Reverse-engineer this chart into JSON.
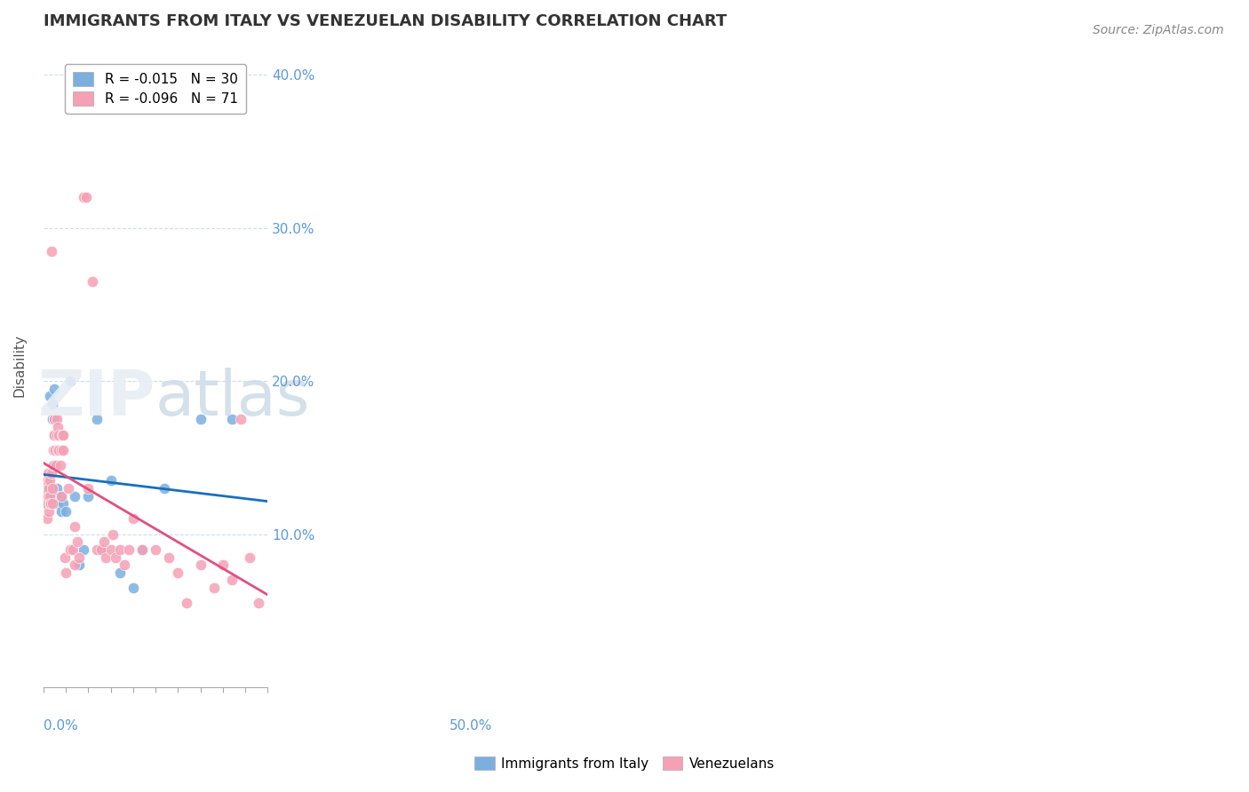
{
  "title": "IMMIGRANTS FROM ITALY VS VENEZUELAN DISABILITY CORRELATION CHART",
  "source": "Source: ZipAtlas.com",
  "ylabel": "Disability",
  "right_yticks": [
    0.1,
    0.2,
    0.3,
    0.4
  ],
  "right_yticklabels": [
    "10.0%",
    "20.0%",
    "30.0%",
    "40.0%"
  ],
  "xlim": [
    0.0,
    0.5
  ],
  "ylim": [
    0.0,
    0.42
  ],
  "legend_entries": [
    {
      "label": "R = -0.015   N = 30",
      "color": "#a8c4e0"
    },
    {
      "label": "R = -0.096   N = 71",
      "color": "#f4a0b0"
    }
  ],
  "legend_label1": "Immigrants from Italy",
  "legend_label2": "Venezuelans",
  "blue_color": "#7aafde",
  "pink_color": "#f5a0b5",
  "trendline_blue_color": "#1a6fbd",
  "trendline_pink_color": "#e05080",
  "italy_x": [
    0.01,
    0.01,
    0.015,
    0.02,
    0.02,
    0.025,
    0.025,
    0.03,
    0.03,
    0.03,
    0.035,
    0.035,
    0.04,
    0.04,
    0.045,
    0.05,
    0.06,
    0.07,
    0.08,
    0.09,
    0.1,
    0.12,
    0.13,
    0.15,
    0.17,
    0.2,
    0.22,
    0.27,
    0.35,
    0.42
  ],
  "italy_y": [
    0.13,
    0.12,
    0.19,
    0.185,
    0.175,
    0.195,
    0.175,
    0.13,
    0.125,
    0.12,
    0.165,
    0.155,
    0.125,
    0.115,
    0.12,
    0.115,
    0.2,
    0.125,
    0.08,
    0.09,
    0.125,
    0.175,
    0.09,
    0.135,
    0.075,
    0.065,
    0.09,
    0.13,
    0.175,
    0.175
  ],
  "venezuela_x": [
    0.005,
    0.007,
    0.008,
    0.009,
    0.01,
    0.01,
    0.012,
    0.013,
    0.014,
    0.015,
    0.015,
    0.016,
    0.018,
    0.019,
    0.02,
    0.02,
    0.022,
    0.023,
    0.024,
    0.025,
    0.025,
    0.026,
    0.028,
    0.03,
    0.03,
    0.032,
    0.033,
    0.035,
    0.035,
    0.038,
    0.04,
    0.04,
    0.042,
    0.045,
    0.045,
    0.048,
    0.05,
    0.055,
    0.06,
    0.065,
    0.07,
    0.07,
    0.075,
    0.08,
    0.09,
    0.095,
    0.1,
    0.11,
    0.12,
    0.13,
    0.135,
    0.14,
    0.15,
    0.155,
    0.16,
    0.17,
    0.18,
    0.19,
    0.2,
    0.22,
    0.25,
    0.28,
    0.3,
    0.32,
    0.35,
    0.38,
    0.4,
    0.42,
    0.44,
    0.46,
    0.48
  ],
  "venezuela_y": [
    0.13,
    0.12,
    0.135,
    0.11,
    0.14,
    0.125,
    0.13,
    0.115,
    0.12,
    0.135,
    0.125,
    0.12,
    0.285,
    0.14,
    0.13,
    0.12,
    0.145,
    0.155,
    0.165,
    0.175,
    0.165,
    0.155,
    0.145,
    0.175,
    0.165,
    0.17,
    0.155,
    0.165,
    0.155,
    0.145,
    0.155,
    0.125,
    0.165,
    0.165,
    0.155,
    0.085,
    0.075,
    0.13,
    0.09,
    0.09,
    0.08,
    0.105,
    0.095,
    0.085,
    0.32,
    0.32,
    0.13,
    0.265,
    0.09,
    0.09,
    0.095,
    0.085,
    0.09,
    0.1,
    0.085,
    0.09,
    0.08,
    0.09,
    0.11,
    0.09,
    0.09,
    0.085,
    0.075,
    0.055,
    0.08,
    0.065,
    0.08,
    0.07,
    0.175,
    0.085,
    0.055
  ]
}
